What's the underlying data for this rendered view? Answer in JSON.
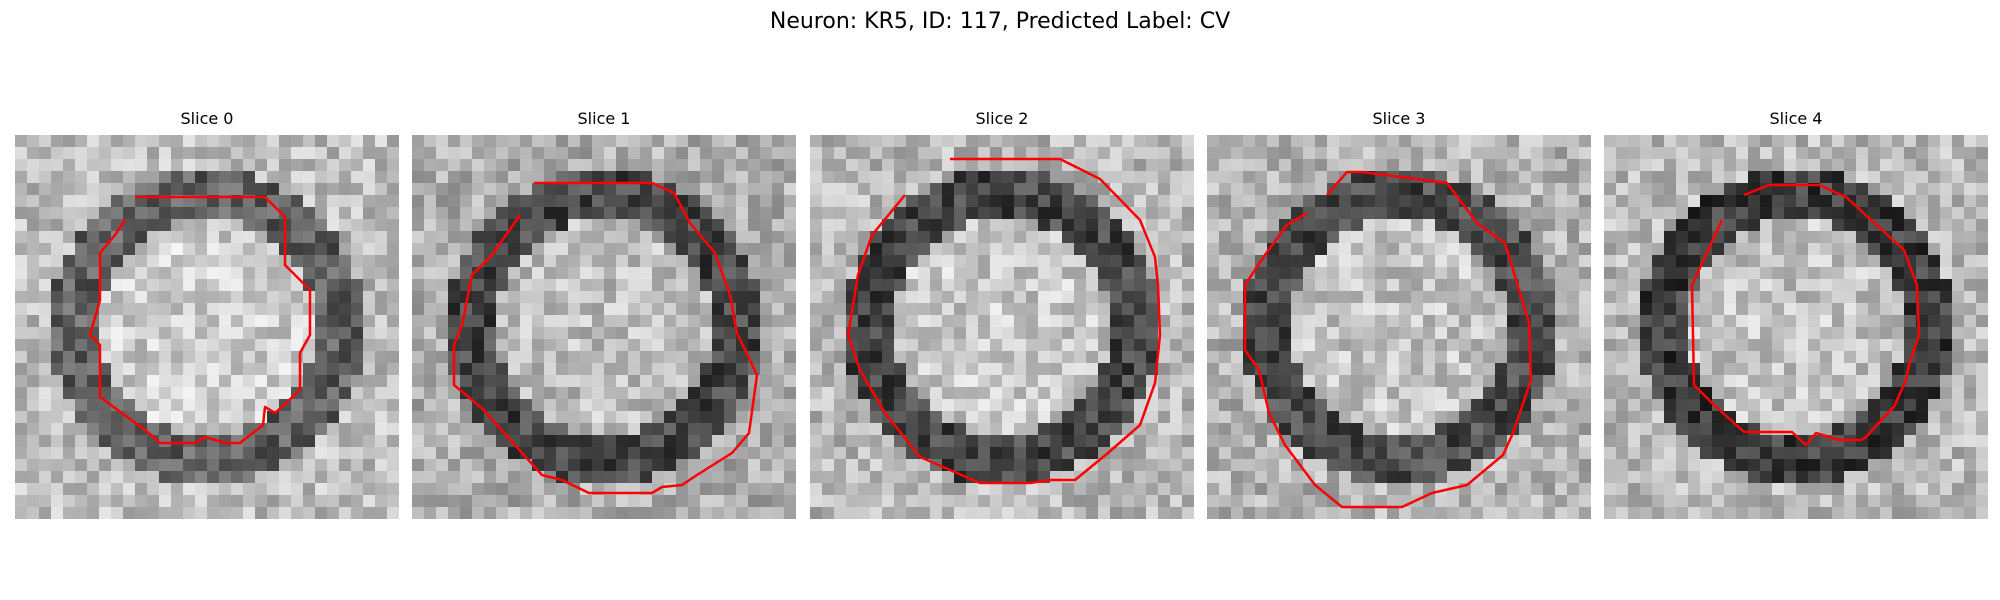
{
  "figure": {
    "title": "Neuron: KR5, ID: 117, Predicted Label: CV"
  },
  "panels": [
    {
      "title": "Slice 0",
      "center_gray": 205,
      "ring_gray": 95,
      "bg_gray": 190
    },
    {
      "title": "Slice 1",
      "center_gray": 190,
      "ring_gray": 70,
      "bg_gray": 175
    },
    {
      "title": "Slice 2",
      "center_gray": 200,
      "ring_gray": 70,
      "bg_gray": 185
    },
    {
      "title": "Slice 3",
      "center_gray": 195,
      "ring_gray": 75,
      "bg_gray": 180
    },
    {
      "title": "Slice 4",
      "center_gray": 195,
      "ring_gray": 60,
      "bg_gray": 185
    }
  ],
  "colors": {
    "contour": "#ff0000",
    "background": "#ffffff"
  }
}
